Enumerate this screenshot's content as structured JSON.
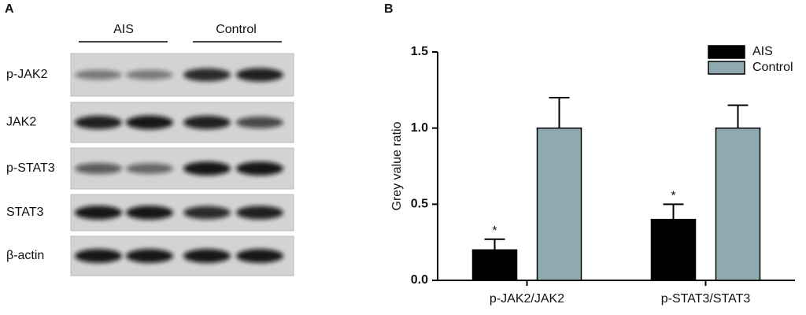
{
  "panel_a": {
    "label": "A",
    "groups": [
      "AIS",
      "Control"
    ],
    "rows": [
      "p-JAK2",
      "JAK2",
      "p-STAT3",
      "STAT3",
      "β-actin"
    ]
  },
  "chart_data": {
    "type": "bar",
    "label": "B",
    "ylabel": "Grey value ratio",
    "categories": [
      "p-JAK2/JAK2",
      "p-STAT3/STAT3"
    ],
    "series": [
      {
        "name": "AIS",
        "color": "#000000",
        "values": [
          0.2,
          0.4
        ],
        "errors": [
          0.07,
          0.1
        ],
        "annotations": [
          "*",
          "*"
        ]
      },
      {
        "name": "Control",
        "color": "#8fa9b3",
        "values": [
          1.0,
          1.0
        ],
        "errors": [
          0.2,
          0.15
        ]
      }
    ],
    "ylim": [
      0,
      1.5
    ],
    "yticks": [
      {
        "value": 0,
        "label": "0.0"
      },
      {
        "value": 0.5,
        "label": "0.5"
      },
      {
        "value": 1,
        "label": "1.0"
      },
      {
        "value": 1.5,
        "label": "1.5"
      }
    ],
    "legend": "upper right"
  }
}
